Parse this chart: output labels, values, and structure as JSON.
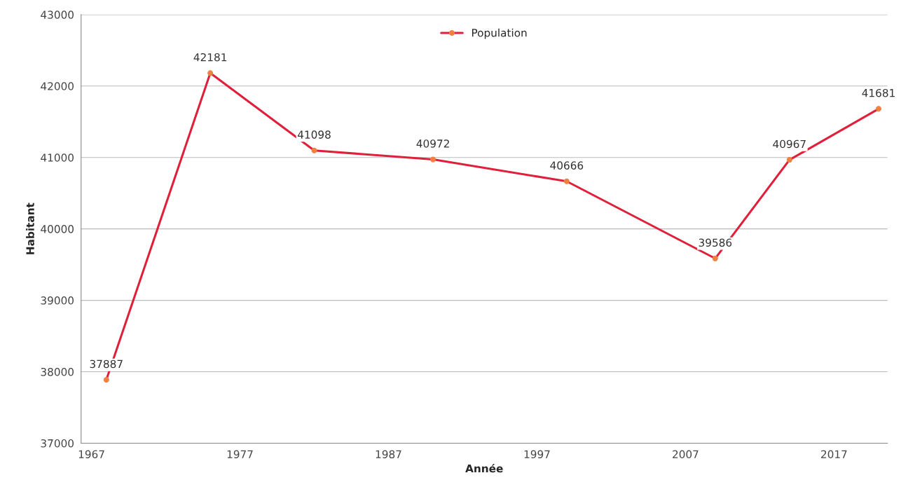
{
  "chart_data": {
    "type": "line",
    "xlabel": "Année",
    "ylabel": "Habitant",
    "x": [
      1968,
      1975,
      1982,
      1990,
      1999,
      2009,
      2014,
      2020
    ],
    "series": [
      {
        "name": "Population",
        "color": "#e0203a",
        "values": [
          37887,
          42181,
          41098,
          40972,
          40666,
          39586,
          40967,
          41681
        ]
      }
    ],
    "xlim": [
      1966.3,
      2020.6
    ],
    "xticks": [
      1967,
      1977,
      1987,
      1997,
      2007,
      2017
    ],
    "ylim": [
      37000,
      43000
    ],
    "yticks": [
      37000,
      38000,
      39000,
      40000,
      41000,
      42000,
      43000
    ],
    "grid": "y",
    "legend": "top",
    "marker": "circle",
    "line_style": "solid",
    "data_labels": true
  }
}
